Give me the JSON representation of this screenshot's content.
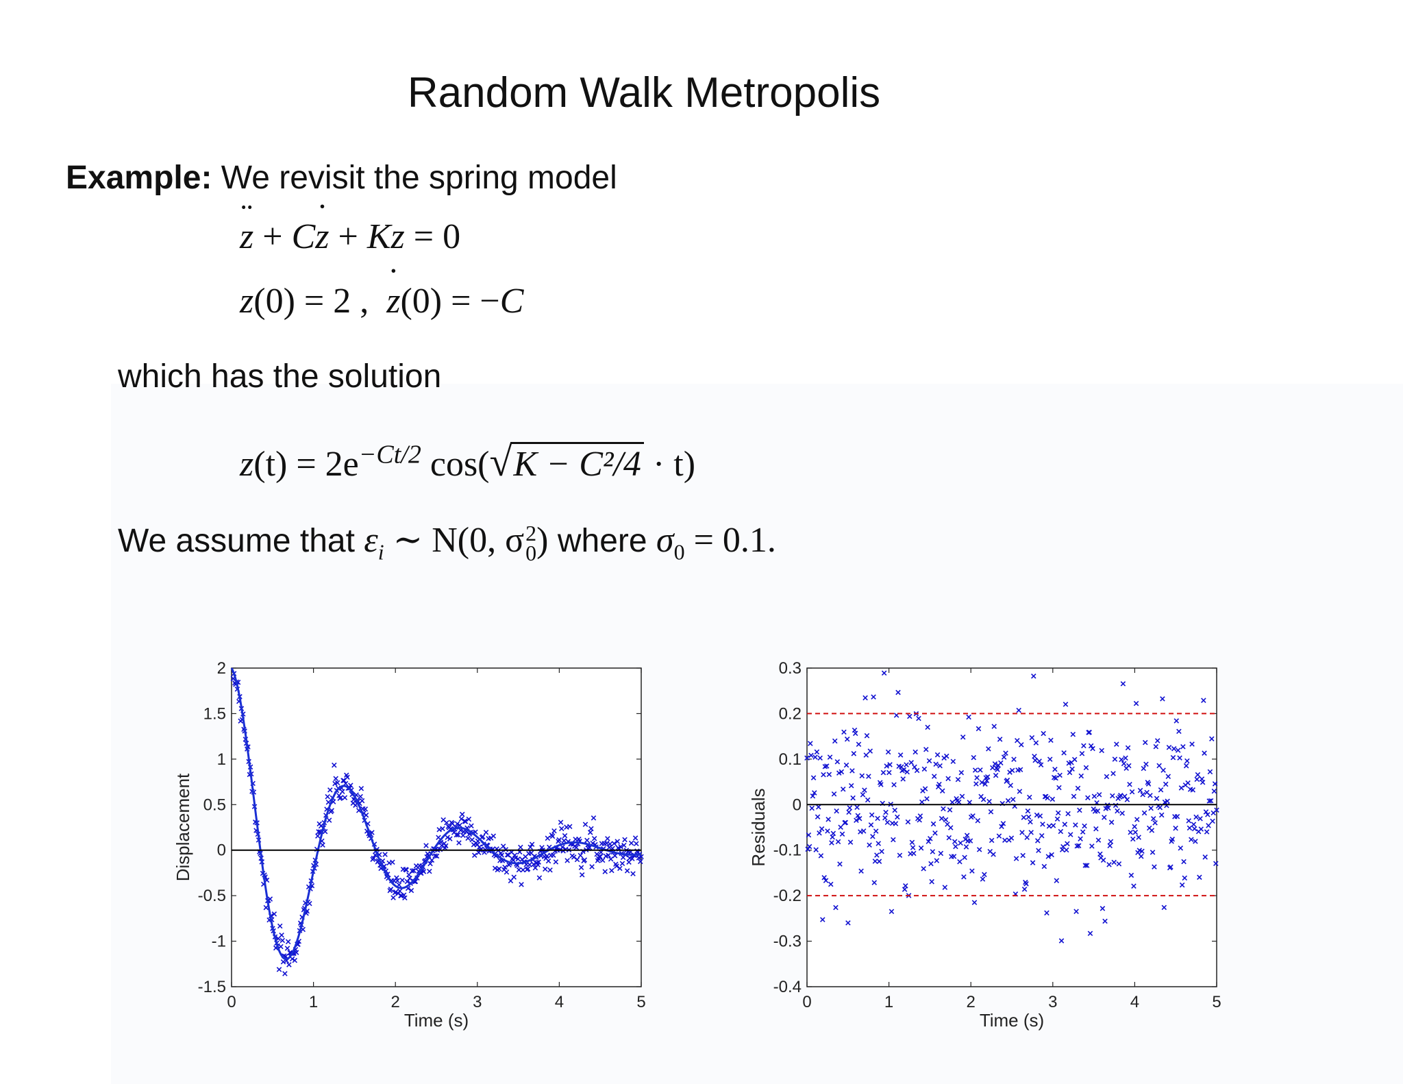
{
  "slide": {
    "title": "Random Walk Metropolis",
    "intro_label": "Example:",
    "intro_text": "We revisit the spring model",
    "solution_text": "which has the solution",
    "assume_prefix": "We assume that",
    "assume_where": "where"
  },
  "equations": {
    "ode": {
      "c": "C",
      "k": "K",
      "rhs": "= 0"
    },
    "initial": {
      "z0": "(0) = 2 ,",
      "zdot0": "(0) = −",
      "c": "C"
    },
    "solution": {
      "lhs": "(t) = 2e",
      "exponent": "−Ct/2",
      "cos": "cos(",
      "radicand": "K − C²/4",
      "tail": "· t)"
    },
    "noise": {
      "eps": "ε",
      "eps_sub": "i",
      "dist": "∼ N(0, σ",
      "sup": "2",
      "sub": "0",
      "close": ")",
      "sigma": "σ",
      "sigma_sub": "0",
      "value": "= 0.1."
    }
  },
  "colors": {
    "data": "#1010d0",
    "fit": "#1a2fd4",
    "zero_line": "#000000",
    "bounds": "#d01010"
  },
  "chart_data": [
    {
      "type": "scatter",
      "title": "",
      "xlabel": "Time (s)",
      "ylabel": "Displacement",
      "xlim": [
        0,
        5
      ],
      "ylim": [
        -1.5,
        2
      ],
      "xticks": [
        0,
        1,
        2,
        3,
        4,
        5
      ],
      "yticks": [
        -1.5,
        -1,
        -0.5,
        0,
        0.5,
        1,
        1.5,
        2
      ],
      "ytick_labels": [
        "-1.5",
        "-1",
        "-0.5",
        "0",
        "0.5",
        "1",
        "1.5",
        "2"
      ],
      "model": {
        "C": 1.5,
        "K": 20.5,
        "z0": 2
      },
      "series": [
        {
          "kind": "markers",
          "marker": "x",
          "noise_sd": 0.1,
          "n": 500
        },
        {
          "kind": "fit_line"
        },
        {
          "kind": "hline",
          "y": 0
        }
      ],
      "grid": false
    },
    {
      "type": "scatter",
      "title": "",
      "xlabel": "Time (s)",
      "ylabel": "Residuals",
      "xlim": [
        0,
        5
      ],
      "ylim": [
        -0.4,
        0.3
      ],
      "xticks": [
        0,
        1,
        2,
        3,
        4,
        5
      ],
      "yticks": [
        -0.4,
        -0.3,
        -0.2,
        -0.1,
        0,
        0.1,
        0.2,
        0.3
      ],
      "ytick_labels": [
        "-0.4",
        "-0.3",
        "-0.2",
        "-0.1",
        "0",
        "0.1",
        "0.2",
        "0.3"
      ],
      "series": [
        {
          "kind": "markers",
          "marker": "x",
          "noise_sd": 0.1,
          "n": 500
        },
        {
          "kind": "hline",
          "y": 0
        },
        {
          "kind": "dashed_hline",
          "y": 0.2
        },
        {
          "kind": "dashed_hline",
          "y": -0.2
        }
      ],
      "grid": false
    }
  ]
}
